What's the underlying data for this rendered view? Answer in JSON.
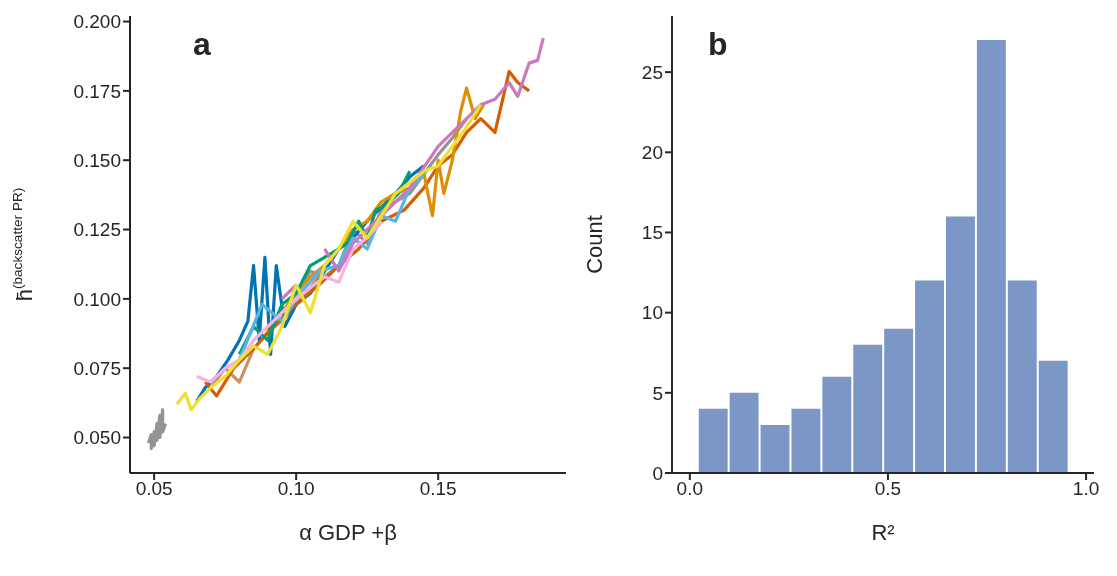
{
  "chart_data": [
    {
      "type": "line",
      "title": "a",
      "xlabel": "α GDP +β",
      "ylabel": "h̄$^{(backscatter PR)}$",
      "xlim": [
        0.0415,
        0.195
      ],
      "ylim": [
        0.0372,
        0.202
      ],
      "xticks": [
        {
          "value": 0.05,
          "label": "0.05"
        },
        {
          "value": 0.1,
          "label": "0.10"
        },
        {
          "value": 0.15,
          "label": "0.15"
        }
      ],
      "yticks": [
        {
          "value": 0.05,
          "label": "0.050"
        },
        {
          "value": 0.075,
          "label": "0.075"
        },
        {
          "value": 0.1,
          "label": "0.100"
        },
        {
          "value": 0.125,
          "label": "0.125"
        },
        {
          "value": 0.15,
          "label": "0.150"
        },
        {
          "value": 0.175,
          "label": "0.175"
        },
        {
          "value": 0.2,
          "label": "0.200"
        }
      ],
      "grid": false,
      "legend": false,
      "marker": "none",
      "line_style": "solid",
      "series": [
        {
          "color": "#949494",
          "x": [
            0.048,
            0.049,
            0.049,
            0.05,
            0.05,
            0.051,
            0.051,
            0.052,
            0.052,
            0.053,
            0.053,
            0.054
          ],
          "values": [
            0.048,
            0.051,
            0.046,
            0.052,
            0.047,
            0.055,
            0.049,
            0.058,
            0.05,
            0.06,
            0.052,
            0.055
          ]
        },
        {
          "color": "#949494",
          "x": [
            0.095,
            0.1,
            0.105,
            0.11,
            0.115,
            0.12,
            0.125,
            0.13,
            0.14,
            0.15,
            0.155,
            0.16
          ],
          "values": [
            0.095,
            0.102,
            0.11,
            0.108,
            0.112,
            0.125,
            0.12,
            0.132,
            0.138,
            0.152,
            0.158,
            0.165
          ]
        },
        {
          "color": "#ca9161",
          "x": [
            0.07,
            0.075,
            0.08,
            0.085,
            0.09,
            0.095,
            0.1,
            0.105,
            0.11
          ],
          "values": [
            0.068,
            0.075,
            0.07,
            0.082,
            0.088,
            0.092,
            0.098,
            0.104,
            0.112
          ]
        },
        {
          "color": "#0173b2",
          "x": [
            0.065,
            0.068,
            0.072,
            0.076,
            0.08,
            0.083,
            0.085,
            0.087,
            0.089,
            0.091,
            0.093,
            0.096,
            0.1,
            0.105,
            0.11,
            0.115,
            0.12,
            0.125,
            0.13,
            0.135,
            0.14,
            0.145
          ],
          "values": [
            0.063,
            0.068,
            0.072,
            0.078,
            0.085,
            0.092,
            0.112,
            0.085,
            0.115,
            0.08,
            0.112,
            0.09,
            0.098,
            0.102,
            0.11,
            0.118,
            0.122,
            0.128,
            0.133,
            0.138,
            0.144,
            0.148
          ]
        },
        {
          "color": "#d55e00",
          "x": [
            0.068,
            0.072,
            0.078,
            0.085,
            0.092,
            0.1,
            0.108,
            0.115,
            0.122,
            0.13,
            0.138,
            0.145,
            0.15,
            0.155,
            0.16,
            0.165,
            0.17,
            0.175,
            0.178,
            0.182
          ],
          "values": [
            0.07,
            0.065,
            0.075,
            0.082,
            0.09,
            0.098,
            0.105,
            0.112,
            0.118,
            0.128,
            0.132,
            0.14,
            0.148,
            0.152,
            0.16,
            0.165,
            0.16,
            0.182,
            0.178,
            0.175
          ]
        },
        {
          "color": "#de8f05",
          "x": [
            0.09,
            0.095,
            0.1,
            0.105,
            0.11,
            0.115,
            0.12,
            0.125,
            0.13,
            0.135,
            0.14,
            0.145,
            0.148,
            0.15,
            0.152,
            0.155,
            0.158,
            0.16,
            0.163,
            0.166
          ],
          "values": [
            0.09,
            0.095,
            0.102,
            0.108,
            0.112,
            0.118,
            0.125,
            0.128,
            0.135,
            0.138,
            0.14,
            0.145,
            0.13,
            0.15,
            0.138,
            0.15,
            0.168,
            0.176,
            0.165,
            0.17
          ]
        },
        {
          "color": "#029e73",
          "x": [
            0.08,
            0.085,
            0.09,
            0.095,
            0.1,
            0.105,
            0.11,
            0.115,
            0.118,
            0.122,
            0.125,
            0.128,
            0.132,
            0.136,
            0.14
          ],
          "values": [
            0.08,
            0.09,
            0.085,
            0.098,
            0.102,
            0.112,
            0.115,
            0.118,
            0.12,
            0.128,
            0.122,
            0.132,
            0.134,
            0.138,
            0.146
          ]
        },
        {
          "color": "#56b4e9",
          "x": [
            0.08,
            0.088,
            0.095,
            0.1,
            0.108,
            0.115,
            0.12,
            0.125,
            0.13,
            0.135,
            0.14,
            0.145
          ],
          "values": [
            0.078,
            0.098,
            0.092,
            0.1,
            0.11,
            0.112,
            0.122,
            0.118,
            0.13,
            0.128,
            0.14,
            0.145
          ]
        },
        {
          "color": "#fbafe4",
          "x": [
            0.065,
            0.07,
            0.075,
            0.08,
            0.085,
            0.09,
            0.095,
            0.1,
            0.105,
            0.11,
            0.115,
            0.12,
            0.125,
            0.13
          ],
          "values": [
            0.072,
            0.07,
            0.075,
            0.078,
            0.085,
            0.09,
            0.095,
            0.1,
            0.104,
            0.108,
            0.106,
            0.118,
            0.122,
            0.128
          ]
        },
        {
          "color": "#cc78bc",
          "x": [
            0.095,
            0.1,
            0.105,
            0.11,
            0.115,
            0.12,
            0.13,
            0.14,
            0.15,
            0.155,
            0.16,
            0.165,
            0.17,
            0.175,
            0.178,
            0.182,
            0.185,
            0.187
          ],
          "values": [
            0.1,
            0.105,
            null,
            0.118,
            0.11,
            0.12,
            0.13,
            0.14,
            0.155,
            0.16,
            0.165,
            0.17,
            0.172,
            0.178,
            0.173,
            0.185,
            0.186,
            0.194
          ]
        },
        {
          "color": "#ece133",
          "x": [
            0.058,
            0.061,
            0.063,
            0.066,
            0.07,
            0.075,
            0.08,
            0.085,
            0.09,
            0.095,
            0.1,
            0.105,
            0.11,
            0.115,
            0.12,
            0.125,
            0.13,
            0.135,
            0.14,
            0.145,
            0.15,
            0.155,
            0.16,
            0.165
          ],
          "values": [
            0.062,
            0.066,
            0.06,
            0.064,
            0.068,
            0.072,
            0.078,
            0.083,
            0.08,
            0.09,
            0.105,
            0.095,
            0.112,
            0.118,
            0.128,
            0.122,
            0.13,
            0.138,
            0.142,
            0.146,
            0.148,
            0.155,
            0.162,
            0.17
          ]
        }
      ]
    },
    {
      "type": "histogram",
      "title": "b",
      "xlabel": "R²",
      "ylabel": "Count",
      "xlim": [
        -0.045,
        1.02
      ],
      "ylim": [
        0,
        28.5
      ],
      "xticks": [
        {
          "value": 0,
          "label": "0.0"
        },
        {
          "value": 0.5,
          "label": "0.5"
        },
        {
          "value": 1,
          "label": "1.0"
        }
      ],
      "yticks": [
        0,
        5,
        10,
        15,
        20,
        25
      ],
      "grid": false,
      "legend": false,
      "color": "#7b97c6",
      "bins": [
        0.02,
        0.098,
        0.176,
        0.254,
        0.332,
        0.41,
        0.488,
        0.566,
        0.644,
        0.722,
        0.8,
        0.878,
        0.956
      ],
      "values": [
        4,
        5,
        3,
        4,
        6,
        8,
        9,
        12,
        16,
        27,
        12,
        7
      ]
    }
  ]
}
